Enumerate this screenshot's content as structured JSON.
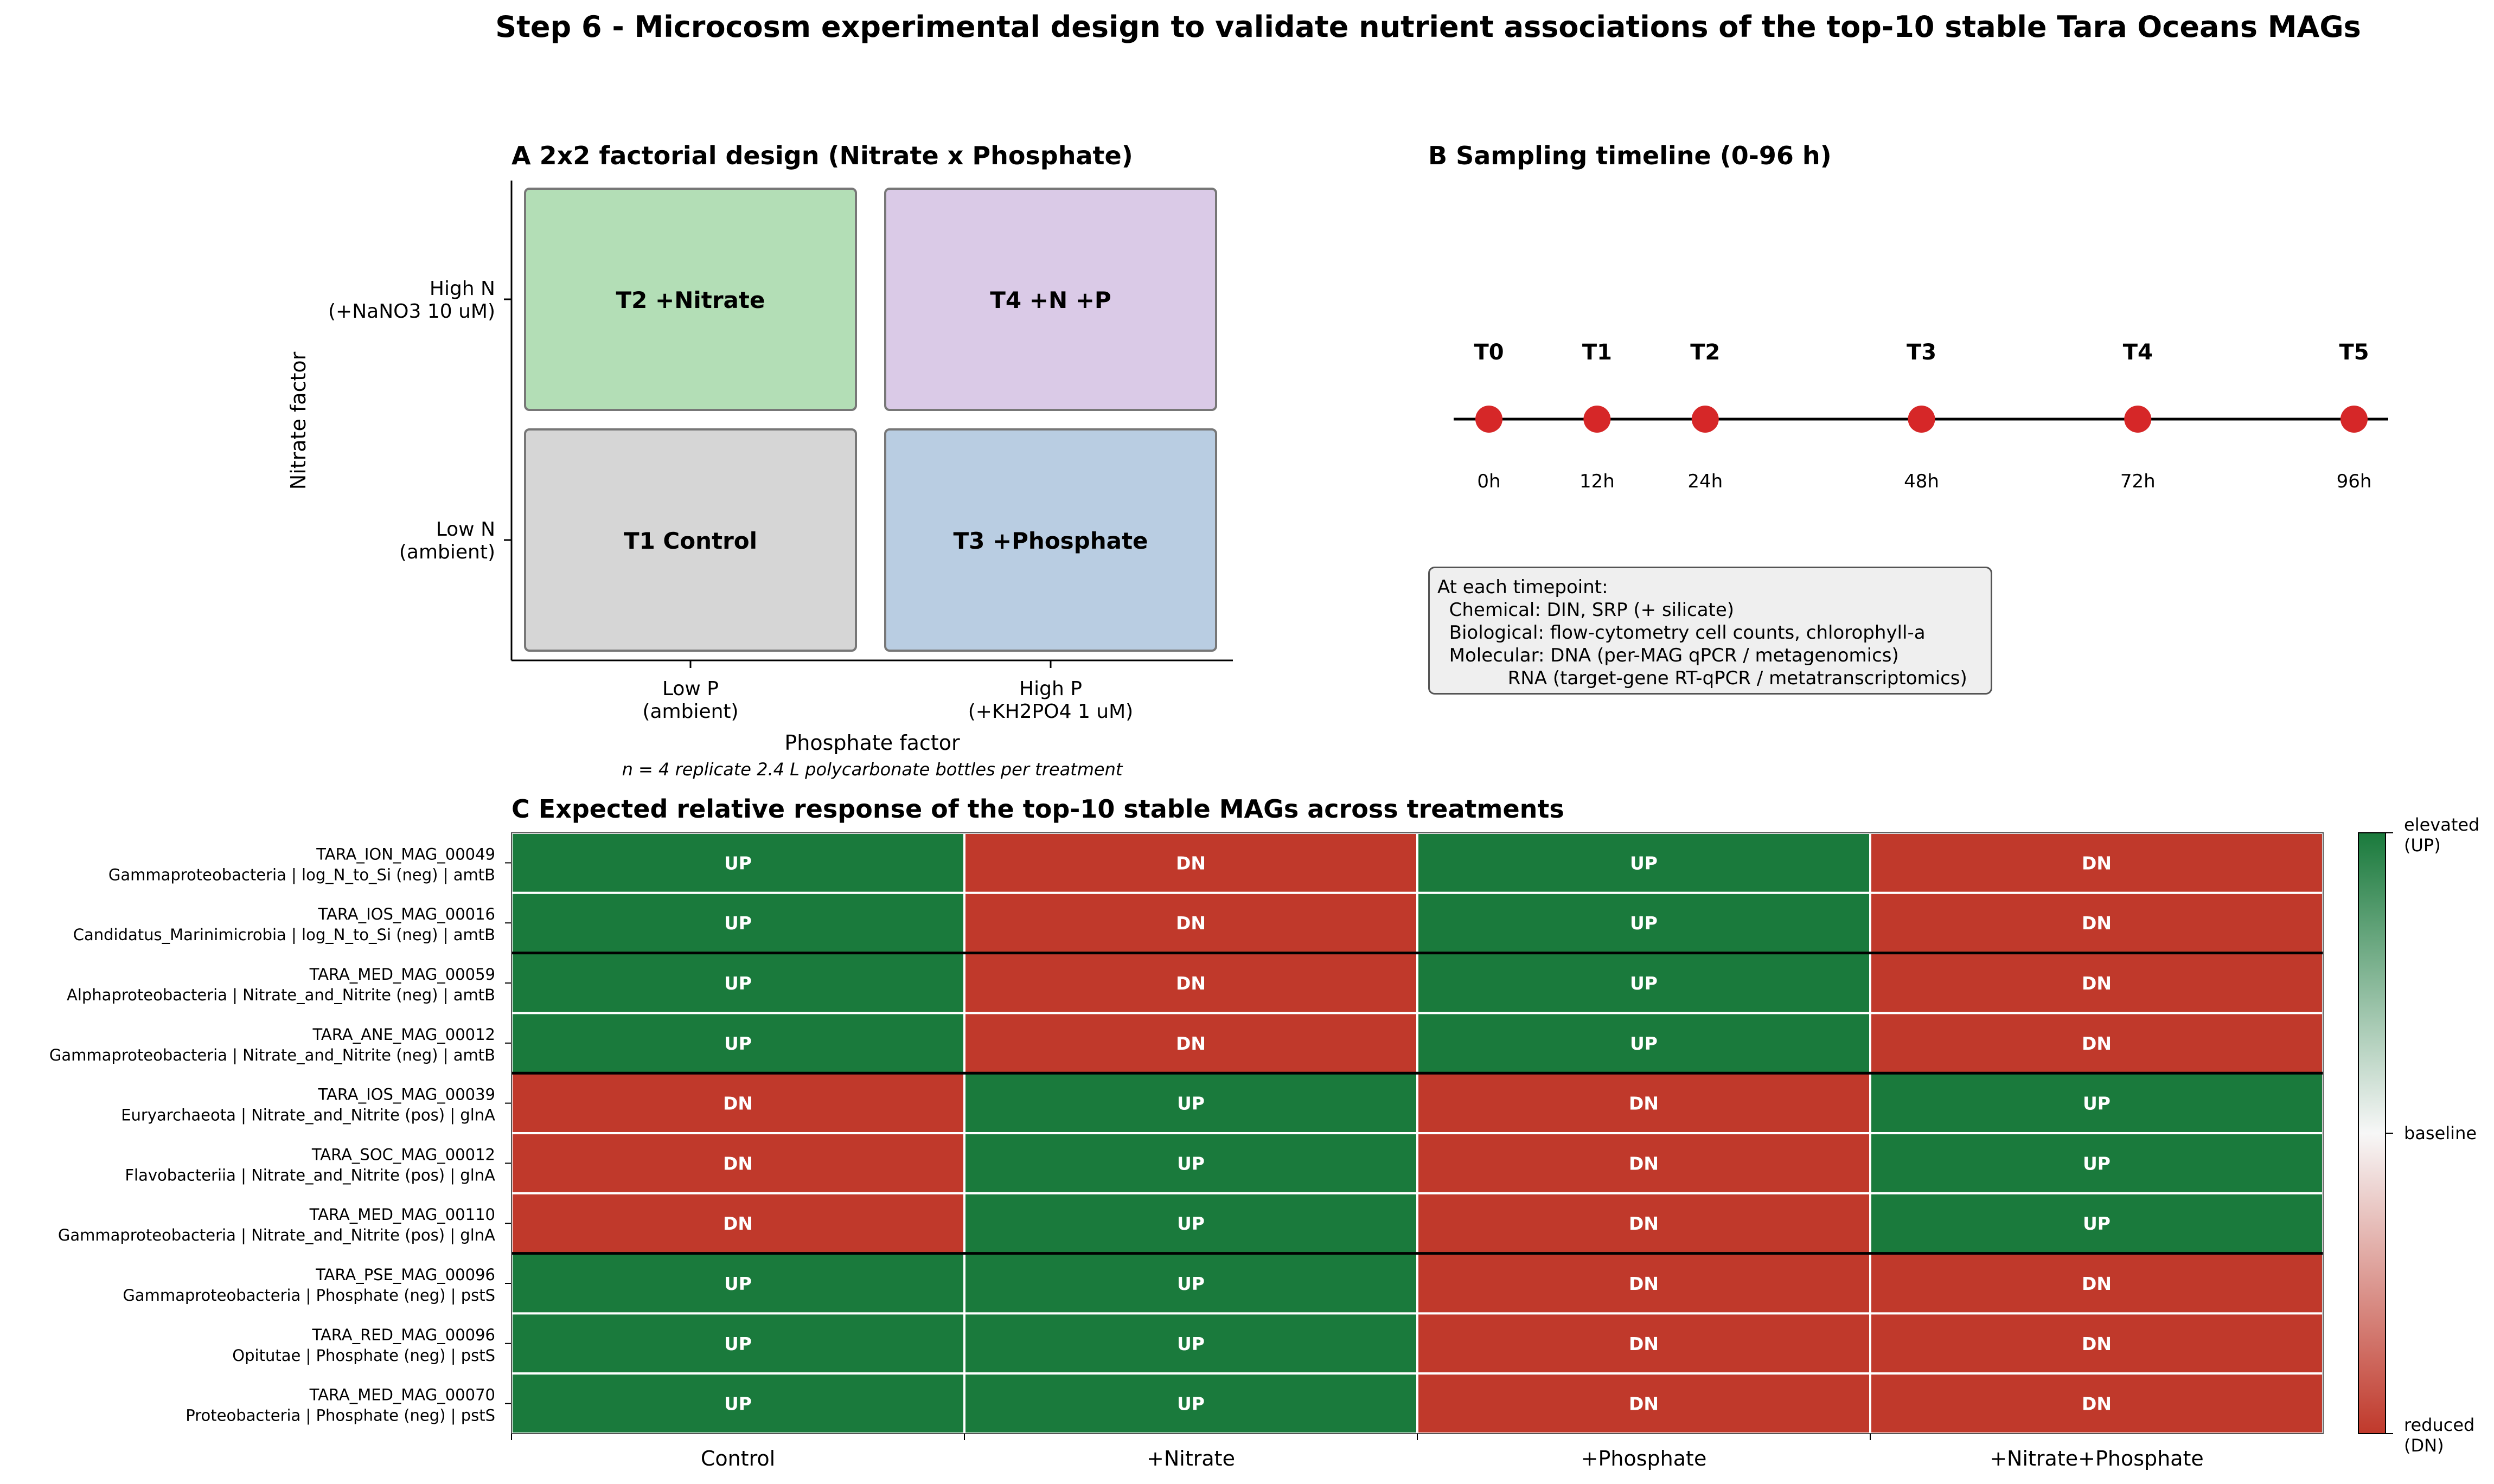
{
  "figure_title": "Step 6 - Microcosm experimental design to validate nutrient associations of the top-10 stable Tara Oceans MAGs",
  "panel_a": {
    "title": "A  2x2 factorial design (Nitrate x Phosphate)",
    "y_label": "Nitrate factor",
    "x_label": "Phosphate factor",
    "x_ticks": [
      [
        "Low P",
        "(ambient)"
      ],
      [
        "High P",
        "(+KH2PO4 1 uM)"
      ]
    ],
    "y_ticks": [
      [
        "Low N",
        "(ambient)"
      ],
      [
        "High N",
        "(+NaNO3 10 uM)"
      ]
    ],
    "footnote": "n = 4 replicate 2.4 L polycarbonate bottles per treatment",
    "cells": [
      {
        "label": "T1 Control",
        "n": "low",
        "p": "low",
        "color": "#d6d6d6"
      },
      {
        "label": "T2 +Nitrate",
        "n": "high",
        "p": "low",
        "color": "#b3deb6"
      },
      {
        "label": "T3 +Phosphate",
        "n": "low",
        "p": "high",
        "color": "#b9cde2"
      },
      {
        "label": "T4 +N +P",
        "n": "high",
        "p": "high",
        "color": "#dacae7"
      }
    ]
  },
  "panel_b": {
    "title": "B  Sampling timeline (0-96 h)",
    "points": [
      {
        "label": "T0",
        "hours": 0,
        "time": "0h"
      },
      {
        "label": "T1",
        "hours": 12,
        "time": "12h"
      },
      {
        "label": "T2",
        "hours": 24,
        "time": "24h"
      },
      {
        "label": "T3",
        "hours": 48,
        "time": "48h"
      },
      {
        "label": "T4",
        "hours": 72,
        "time": "72h"
      },
      {
        "label": "T5",
        "hours": 96,
        "time": "96h"
      }
    ],
    "point_color": "#d62728",
    "note_lines": [
      "At each timepoint:",
      "  Chemical: DIN, SRP (+ silicate)",
      "  Biological: flow-cytometry cell counts, chlorophyll-a",
      "  Molecular: DNA (per-MAG qPCR / metagenomics)",
      "            RNA (target-gene RT-qPCR / metatranscriptomics)"
    ]
  },
  "chart_data": {
    "type": "heatmap",
    "title": "C  Expected relative response of the top-10 stable MAGs across treatments",
    "columns": [
      "Control",
      "+Nitrate",
      "+Phosphate",
      "+Nitrate+Phosphate"
    ],
    "rows": [
      {
        "name": "TARA_ION_MAG_00049",
        "desc": "Gammaproteobacteria | log_N_to_Si (neg) | amtB",
        "values": [
          "UP",
          "DN",
          "UP",
          "DN"
        ]
      },
      {
        "name": "TARA_IOS_MAG_00016",
        "desc": "Candidatus_Marinimicrobia | log_N_to_Si (neg) | amtB",
        "values": [
          "UP",
          "DN",
          "UP",
          "DN"
        ]
      },
      {
        "name": "TARA_MED_MAG_00059",
        "desc": "Alphaproteobacteria | Nitrate_and_Nitrite (neg) | amtB",
        "values": [
          "UP",
          "DN",
          "UP",
          "DN"
        ]
      },
      {
        "name": "TARA_ANE_MAG_00012",
        "desc": "Gammaproteobacteria | Nitrate_and_Nitrite (neg) | amtB",
        "values": [
          "UP",
          "DN",
          "UP",
          "DN"
        ]
      },
      {
        "name": "TARA_IOS_MAG_00039",
        "desc": "Euryarchaeota | Nitrate_and_Nitrite (pos) | glnA",
        "values": [
          "DN",
          "UP",
          "DN",
          "UP"
        ]
      },
      {
        "name": "TARA_SOC_MAG_00012",
        "desc": "Flavobacteriia | Nitrate_and_Nitrite (pos) | glnA",
        "values": [
          "DN",
          "UP",
          "DN",
          "UP"
        ]
      },
      {
        "name": "TARA_MED_MAG_00110",
        "desc": "Gammaproteobacteria | Nitrate_and_Nitrite (pos) | glnA",
        "values": [
          "DN",
          "UP",
          "DN",
          "UP"
        ]
      },
      {
        "name": "TARA_PSE_MAG_00096",
        "desc": "Gammaproteobacteria | Phosphate (neg) | pstS",
        "values": [
          "UP",
          "UP",
          "DN",
          "DN"
        ]
      },
      {
        "name": "TARA_RED_MAG_00096",
        "desc": "Opitutae | Phosphate (neg) | pstS",
        "values": [
          "UP",
          "UP",
          "DN",
          "DN"
        ]
      },
      {
        "name": "TARA_MED_MAG_00070",
        "desc": "Proteobacteria | Phosphate (neg) | pstS",
        "values": [
          "UP",
          "UP",
          "DN",
          "DN"
        ]
      }
    ],
    "group_boundaries_after_row": [
      2,
      4,
      7
    ],
    "colors": {
      "UP": "#1a7a3c",
      "DN": "#c0392b",
      "baseline": "#f7f7f7"
    },
    "colorbar_labels": {
      "top": [
        "elevated",
        "(UP)"
      ],
      "middle": "baseline",
      "bottom": [
        "reduced",
        "(DN)"
      ]
    }
  }
}
